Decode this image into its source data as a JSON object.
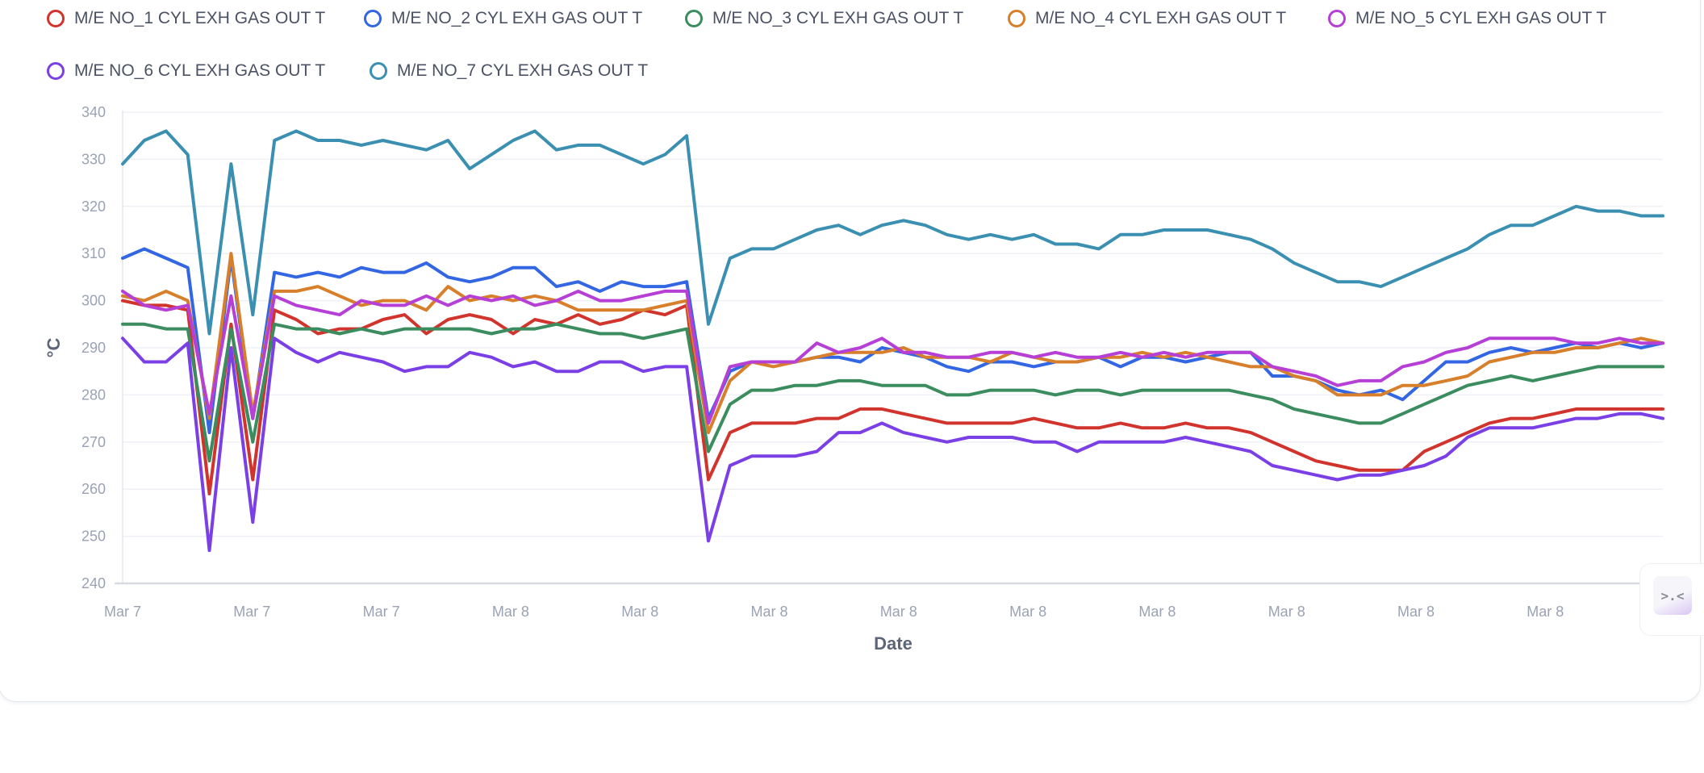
{
  "chart_data": {
    "type": "line",
    "xlabel": "Date",
    "ylabel": "°C",
    "ylim": [
      240,
      340
    ],
    "yticks": [
      "340",
      "330",
      "320",
      "310",
      "300",
      "290",
      "280",
      "270",
      "260",
      "250",
      "240"
    ],
    "xticks": [
      "Mar 7",
      "Mar 7",
      "Mar 7",
      "Mar 8",
      "Mar 8",
      "Mar 8",
      "Mar 8",
      "Mar 8",
      "Mar 8",
      "Mar 8",
      "Mar 8",
      "Mar 8"
    ],
    "grid": true,
    "legend": "top",
    "series": [
      {
        "name": "M/E NO_1 CYL EXH GAS OUT T",
        "color": "#d0342c",
        "values": [
          300,
          299,
          299,
          298,
          259,
          295,
          262,
          298,
          296,
          293,
          294,
          294,
          296,
          297,
          293,
          296,
          297,
          296,
          293,
          296,
          295,
          297,
          295,
          296,
          298,
          297,
          299,
          262,
          272,
          274,
          274,
          274,
          275,
          275,
          277,
          277,
          276,
          275,
          274,
          274,
          274,
          274,
          275,
          274,
          273,
          273,
          274,
          273,
          273,
          274,
          273,
          273,
          272,
          270,
          268,
          266,
          265,
          264,
          264,
          264,
          268,
          270,
          272,
          274,
          275,
          275,
          276,
          277,
          277,
          277,
          277,
          277
        ]
      },
      {
        "name": "M/E NO_2 CYL EXH GAS OUT T",
        "color": "#3366e3",
        "values": [
          309,
          311,
          309,
          307,
          272,
          309,
          275,
          306,
          305,
          306,
          305,
          307,
          306,
          306,
          308,
          305,
          304,
          305,
          307,
          307,
          303,
          304,
          302,
          304,
          303,
          303,
          304,
          275,
          285,
          287,
          287,
          287,
          288,
          288,
          287,
          290,
          289,
          288,
          286,
          285,
          287,
          287,
          286,
          287,
          287,
          288,
          286,
          288,
          288,
          287,
          288,
          289,
          289,
          284,
          284,
          283,
          281,
          280,
          281,
          279,
          283,
          287,
          287,
          289,
          290,
          289,
          290,
          291,
          290,
          291,
          290,
          291
        ]
      },
      {
        "name": "M/E NO_3 CYL EXH GAS OUT T",
        "color": "#3b8d5f",
        "values": [
          295,
          295,
          294,
          294,
          266,
          294,
          270,
          295,
          294,
          294,
          293,
          294,
          293,
          294,
          294,
          294,
          294,
          293,
          294,
          294,
          295,
          294,
          293,
          293,
          292,
          293,
          294,
          268,
          278,
          281,
          281,
          282,
          282,
          283,
          283,
          282,
          282,
          282,
          280,
          280,
          281,
          281,
          281,
          280,
          281,
          281,
          280,
          281,
          281,
          281,
          281,
          281,
          280,
          279,
          277,
          276,
          275,
          274,
          274,
          276,
          278,
          280,
          282,
          283,
          284,
          283,
          284,
          285,
          286,
          286,
          286,
          286
        ]
      },
      {
        "name": "M/E NO_4 CYL EXH GAS OUT T",
        "color": "#d77f2b",
        "values": [
          301,
          300,
          302,
          300,
          275,
          310,
          276,
          302,
          302,
          303,
          301,
          299,
          300,
          300,
          298,
          303,
          300,
          301,
          300,
          301,
          300,
          298,
          298,
          298,
          298,
          299,
          300,
          272,
          283,
          287,
          286,
          287,
          288,
          289,
          289,
          289,
          290,
          288,
          288,
          288,
          287,
          289,
          288,
          287,
          287,
          288,
          288,
          289,
          288,
          289,
          288,
          287,
          286,
          286,
          284,
          283,
          280,
          280,
          280,
          282,
          282,
          283,
          284,
          287,
          288,
          289,
          289,
          290,
          290,
          291,
          292,
          291
        ]
      },
      {
        "name": "M/E NO_5 CYL EXH GAS OUT T",
        "color": "#b63fd6",
        "values": [
          302,
          299,
          298,
          299,
          276,
          301,
          275,
          301,
          299,
          298,
          297,
          300,
          299,
          299,
          301,
          299,
          301,
          300,
          301,
          299,
          300,
          302,
          300,
          300,
          301,
          302,
          302,
          274,
          286,
          287,
          287,
          287,
          291,
          289,
          290,
          292,
          289,
          289,
          288,
          288,
          289,
          289,
          288,
          289,
          288,
          288,
          289,
          288,
          289,
          288,
          289,
          289,
          289,
          286,
          285,
          284,
          282,
          283,
          283,
          286,
          287,
          289,
          290,
          292,
          292,
          292,
          292,
          291,
          291,
          292,
          291,
          291
        ]
      },
      {
        "name": "M/E NO_6 CYL EXH GAS OUT T",
        "color": "#7b3fe6",
        "values": [
          292,
          287,
          287,
          291,
          247,
          290,
          253,
          292,
          289,
          287,
          289,
          288,
          287,
          285,
          286,
          286,
          289,
          288,
          286,
          287,
          285,
          285,
          287,
          287,
          285,
          286,
          286,
          249,
          265,
          267,
          267,
          267,
          268,
          272,
          272,
          274,
          272,
          271,
          270,
          271,
          271,
          271,
          270,
          270,
          268,
          270,
          270,
          270,
          270,
          271,
          270,
          269,
          268,
          265,
          264,
          263,
          262,
          263,
          263,
          264,
          265,
          267,
          271,
          273,
          273,
          273,
          274,
          275,
          275,
          276,
          276,
          275
        ]
      },
      {
        "name": "M/E NO_7 CYL EXH GAS OUT T",
        "color": "#3b90b1",
        "values": [
          329,
          334,
          336,
          331,
          293,
          329,
          297,
          334,
          336,
          334,
          334,
          333,
          334,
          333,
          332,
          334,
          328,
          331,
          334,
          336,
          332,
          333,
          333,
          331,
          329,
          331,
          335,
          295,
          309,
          311,
          311,
          313,
          315,
          316,
          314,
          316,
          317,
          316,
          314,
          313,
          314,
          313,
          314,
          312,
          312,
          311,
          314,
          314,
          315,
          315,
          315,
          314,
          313,
          311,
          308,
          306,
          304,
          304,
          303,
          305,
          307,
          309,
          311,
          314,
          316,
          316,
          318,
          320,
          319,
          319,
          318,
          318
        ]
      }
    ]
  },
  "float_button": {
    "icon": "face-icon",
    "label": ">.<"
  }
}
